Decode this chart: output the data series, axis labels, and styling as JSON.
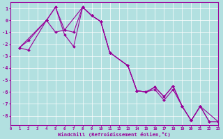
{
  "background_color": "#b2e0e0",
  "line_color": "#990099",
  "grid_color": "#ffffff",
  "xlabel": "Windchill (Refroidissement éolien,°C)",
  "xlim": [
    0,
    23
  ],
  "ylim": [
    -8.8,
    1.5
  ],
  "yticks": [
    1,
    0,
    -1,
    -2,
    -3,
    -4,
    -5,
    -6,
    -7,
    -8
  ],
  "xticks": [
    0,
    1,
    2,
    3,
    4,
    5,
    6,
    7,
    8,
    9,
    10,
    11,
    12,
    13,
    14,
    15,
    16,
    17,
    18,
    19,
    20,
    21,
    22,
    23
  ],
  "c1_x": [
    1,
    2,
    4,
    5,
    6,
    7,
    8,
    9,
    10,
    11,
    13,
    14,
    15,
    16,
    17,
    18,
    19,
    20,
    21,
    22,
    23
  ],
  "c1_y": [
    -2.3,
    -2.5,
    0.0,
    1.1,
    -1.2,
    -2.2,
    1.1,
    0.4,
    -0.1,
    -2.7,
    -3.8,
    -5.9,
    -6.0,
    -5.6,
    -6.4,
    -5.5,
    -7.2,
    -8.4,
    -7.2,
    -8.5,
    -8.5
  ],
  "c2_x": [
    1,
    2,
    4,
    5,
    6,
    7,
    8,
    9,
    10,
    11,
    13,
    14,
    15,
    16,
    17,
    18,
    19,
    20,
    21,
    23
  ],
  "c2_y": [
    -2.3,
    -1.7,
    0.0,
    -1.0,
    -0.8,
    -1.0,
    1.1,
    0.4,
    -0.1,
    -2.7,
    -3.8,
    -5.9,
    -6.0,
    -5.8,
    -6.7,
    -5.8,
    -7.2,
    -8.4,
    -7.2,
    -8.5
  ],
  "c3_x": [
    1,
    4,
    5,
    6,
    8,
    9,
    10,
    11,
    13,
    14,
    15,
    16,
    17,
    18,
    19,
    20,
    21,
    22,
    23
  ],
  "c3_y": [
    -2.3,
    0.0,
    1.1,
    -0.8,
    1.1,
    0.4,
    -0.1,
    -2.7,
    -3.8,
    -5.9,
    -6.0,
    -5.6,
    -6.4,
    -5.5,
    -7.2,
    -8.4,
    -7.2,
    -8.5,
    -8.5
  ]
}
